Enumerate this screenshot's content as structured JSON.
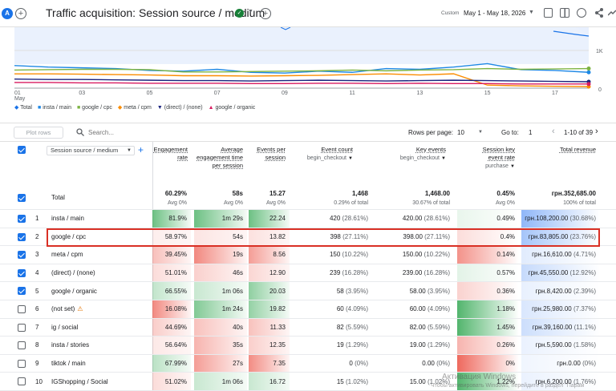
{
  "header": {
    "avatar": "A",
    "title": "Traffic acquisition: Session source / medium",
    "date_label": "Custom",
    "date_range": "May 1 - May 18, 2026"
  },
  "chart": {
    "y_labels": [
      "1K",
      "0"
    ],
    "x_labels": [
      "01\nMay",
      "03",
      "05",
      "07",
      "09",
      "11",
      "13",
      "15",
      "17"
    ],
    "series_colors": {
      "Total": "#1a73e8",
      "insta / main": "#1e88e5",
      "google / cpc": "#7cb342",
      "meta / cpm": "#fb8c00",
      "(direct) / (none)": "#1a237e",
      "google / organic": "#d81b60"
    }
  },
  "chart_data": {
    "type": "line",
    "x": [
      "01",
      "02",
      "03",
      "04",
      "05",
      "06",
      "07",
      "08",
      "09",
      "10",
      "11",
      "12",
      "13",
      "14",
      "15",
      "16",
      "17",
      "18"
    ],
    "series": [
      {
        "name": "insta / main",
        "values": [
          600,
          560,
          540,
          520,
          470,
          450,
          500,
          420,
          400,
          450,
          420,
          520,
          500,
          560,
          650,
          490,
          470,
          420
        ]
      },
      {
        "name": "google / cpc",
        "values": [
          480,
          490,
          500,
          500,
          490,
          430,
          430,
          440,
          450,
          460,
          480,
          460,
          480,
          490,
          520,
          500,
          510,
          520
        ]
      },
      {
        "name": "meta / cpm",
        "values": [
          380,
          380,
          370,
          360,
          350,
          330,
          330,
          320,
          330,
          340,
          360,
          380,
          350,
          380,
          80,
          60,
          50,
          40
        ]
      },
      {
        "name": "(direct) / (none)",
        "values": [
          240,
          230,
          230,
          220,
          210,
          200,
          200,
          190,
          200,
          210,
          200,
          190,
          200,
          210,
          200,
          190,
          180,
          170
        ]
      },
      {
        "name": "google / organic",
        "values": [
          150,
          150,
          140,
          140,
          130,
          130,
          130,
          120,
          120,
          130,
          130,
          120,
          130,
          120,
          120,
          110,
          110,
          110
        ]
      }
    ],
    "ylim": [
      0,
      1200
    ]
  },
  "legend": [
    "Total",
    "insta / main",
    "google / cpc",
    "meta / cpm",
    "(direct) / (none)",
    "google / organic"
  ],
  "toolbar": {
    "plot_rows": "Plot rows",
    "search": "Search...",
    "rows_per_page_label": "Rows per page:",
    "rows_per_page": "10",
    "goto_label": "Go to:",
    "goto": "1",
    "page_info": "1-10 of 39"
  },
  "columns": {
    "dimension": "Session source / medium",
    "engagement_rate": "Engagement rate",
    "avg_time": "Average engagement time per session",
    "events": "Events per session",
    "event_count": "Event count",
    "event_count_sub": "begin_checkout",
    "key_events": "Key events",
    "key_events_sub": "begin_checkout",
    "key_rate": "Session key event rate",
    "key_rate_sub": "purchase",
    "revenue": "Total revenue"
  },
  "totals": {
    "label": "Total",
    "er": "60.29%",
    "er_sub": "Avg 0%",
    "time": "58s",
    "time_sub": "Avg 0%",
    "ev": "15.27",
    "ev_sub": "Avg 0%",
    "ec": "1,468",
    "ec_sub": "0.29% of total",
    "ke": "1,468.00",
    "ke_sub": "30.67% of total",
    "kr": "0.45%",
    "kr_sub": "Avg 0%",
    "rev": "грн.352,685.00",
    "rev_sub": "100% of total"
  },
  "rows": [
    {
      "n": "1",
      "name": "insta / main",
      "er": "81.9%",
      "time": "1m 29s",
      "ev": "22.24",
      "ec": "420",
      "ecp": "(28.61%)",
      "ke": "420.00",
      "kep": "(28.61%)",
      "kr": "0.49%",
      "rev": "грн.108,200.00",
      "revp": "(30.68%)",
      "checked": true
    },
    {
      "n": "2",
      "name": "google / cpc",
      "er": "58.97%",
      "time": "54s",
      "ev": "13.82",
      "ec": "398",
      "ecp": "(27.11%)",
      "ke": "398.00",
      "kep": "(27.11%)",
      "kr": "0.4%",
      "rev": "грн.83,805.00",
      "revp": "(23.76%)",
      "checked": true
    },
    {
      "n": "3",
      "name": "meta / cpm",
      "er": "39.45%",
      "time": "19s",
      "ev": "8.56",
      "ec": "150",
      "ecp": "(10.22%)",
      "ke": "150.00",
      "kep": "(10.22%)",
      "kr": "0.14%",
      "rev": "грн.16,610.00",
      "revp": "(4.71%)",
      "checked": true
    },
    {
      "n": "4",
      "name": "(direct) / (none)",
      "er": "51.01%",
      "time": "46s",
      "ev": "12.90",
      "ec": "239",
      "ecp": "(16.28%)",
      "ke": "239.00",
      "kep": "(16.28%)",
      "kr": "0.57%",
      "rev": "грн.45,550.00",
      "revp": "(12.92%)",
      "checked": true
    },
    {
      "n": "5",
      "name": "google / organic",
      "er": "66.55%",
      "time": "1m 06s",
      "ev": "20.03",
      "ec": "58",
      "ecp": "(3.95%)",
      "ke": "58.00",
      "kep": "(3.95%)",
      "kr": "0.36%",
      "rev": "грн.8,420.00",
      "revp": "(2.39%)",
      "checked": true
    },
    {
      "n": "6",
      "name": "(not set)",
      "er": "16.08%",
      "time": "1m 24s",
      "ev": "19.82",
      "ec": "60",
      "ecp": "(4.09%)",
      "ke": "60.00",
      "kep": "(4.09%)",
      "kr": "1.18%",
      "rev": "грн.25,980.00",
      "revp": "(7.37%)",
      "checked": false,
      "warn": true
    },
    {
      "n": "7",
      "name": "ig / social",
      "er": "44.69%",
      "time": "40s",
      "ev": "11.33",
      "ec": "82",
      "ecp": "(5.59%)",
      "ke": "82.00",
      "kep": "(5.59%)",
      "kr": "1.45%",
      "rev": "грн.39,160.00",
      "revp": "(11.1%)",
      "checked": false
    },
    {
      "n": "8",
      "name": "insta / stories",
      "er": "56.64%",
      "time": "35s",
      "ev": "12.35",
      "ec": "19",
      "ecp": "(1.29%)",
      "ke": "19.00",
      "kep": "(1.29%)",
      "kr": "0.26%",
      "rev": "грн.5,590.00",
      "revp": "(1.58%)",
      "checked": false
    },
    {
      "n": "9",
      "name": "tiktok / main",
      "er": "67.99%",
      "time": "27s",
      "ev": "7.35",
      "ec": "0",
      "ecp": "(0%)",
      "ke": "0.00",
      "kep": "(0%)",
      "kr": "0%",
      "rev": "грн.0.00",
      "revp": "(0%)",
      "checked": false
    },
    {
      "n": "10",
      "name": "IGShopping / Social",
      "er": "51.02%",
      "time": "1m 06s",
      "ev": "16.72",
      "ec": "15",
      "ecp": "(1.02%)",
      "ke": "15.00",
      "kep": "(1.02%)",
      "kr": "1.22%",
      "rev": "грн.6,200.00",
      "revp": "(1.76%)",
      "checked": false
    }
  ],
  "watermark": {
    "line1": "Активация Windows",
    "line2": "Чтобы активировать Windows, перейдите в раздел \"Парам"
  }
}
